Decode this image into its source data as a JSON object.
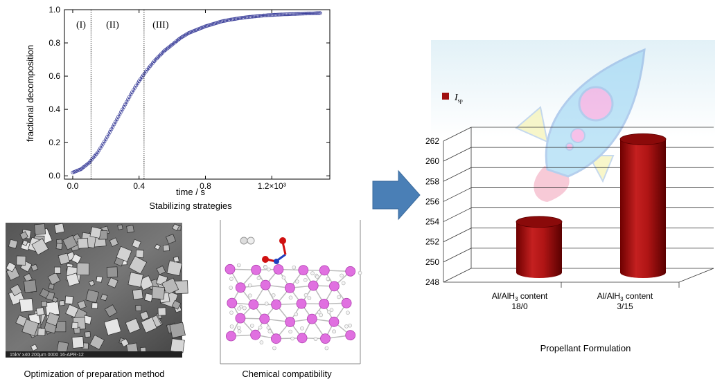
{
  "chart_data": [
    {
      "type": "line",
      "xlabel": "time / s",
      "ylabel": "fractional decomposition",
      "xlim": [
        -0.05,
        1.55
      ],
      "ylim": [
        -0.02,
        1.0
      ],
      "x_ticks": [
        "0.0",
        "0.4",
        "0.8",
        "1.2×10³"
      ],
      "x_tick_values": [
        0.0,
        0.4,
        0.8,
        1.2
      ],
      "y_ticks": [
        "0.0",
        "0.2",
        "0.4",
        "0.6",
        "0.8",
        "1.0"
      ],
      "y_tick_values": [
        0.0,
        0.2,
        0.4,
        0.6,
        0.8,
        1.0
      ],
      "region_labels": [
        "(I)",
        "(II)",
        "(III)"
      ],
      "dividers_x": [
        0.11,
        0.43
      ],
      "series": [
        {
          "x": [
            0.0,
            0.05,
            0.1,
            0.15,
            0.2,
            0.25,
            0.3,
            0.35,
            0.4,
            0.45,
            0.5,
            0.55,
            0.6,
            0.65,
            0.7,
            0.75,
            0.8,
            0.85,
            0.9,
            0.95,
            1.0,
            1.05,
            1.1,
            1.15,
            1.2,
            1.25,
            1.3,
            1.35,
            1.4,
            1.45,
            1.5
          ],
          "y": [
            0.02,
            0.04,
            0.08,
            0.14,
            0.22,
            0.31,
            0.4,
            0.49,
            0.57,
            0.64,
            0.7,
            0.75,
            0.79,
            0.83,
            0.86,
            0.88,
            0.9,
            0.915,
            0.93,
            0.94,
            0.948,
            0.955,
            0.96,
            0.965,
            0.968,
            0.971,
            0.973,
            0.975,
            0.977,
            0.978,
            0.98
          ]
        }
      ]
    },
    {
      "type": "bar",
      "categories": [
        "Al/AlH3 content 18/0",
        "Al/AlH3 content 3/15"
      ],
      "values": [
        253.3,
        261.5
      ],
      "ylim": [
        248,
        262
      ],
      "y_ticks": [
        "248",
        "250",
        "252",
        "254",
        "256",
        "258",
        "260",
        "262"
      ],
      "y_tick_values": [
        248,
        250,
        252,
        254,
        256,
        258,
        260,
        262
      ],
      "legend": "Isp",
      "legend_position": "top-left",
      "xlabel": "Propellant Formulation"
    }
  ],
  "text": {
    "stabilizing": "Stabilizing strategies",
    "optimization": "Optimization of preparation method",
    "compatibility": "Chemical compatibility",
    "propellant": "Propellant  Formulation",
    "cat1_line1": "Al/AlH",
    "cat1_sub": "3",
    "cat1_tail": " content",
    "cat1_line2": "18/0",
    "cat2_line1": "Al/AlH",
    "cat2_sub": "3",
    "cat2_tail": " content",
    "cat2_line2": "3/15",
    "legend_main": "I",
    "legend_sub": "sp",
    "sem_caption": "15kV   x40 200μm 0000 16-APR-12"
  },
  "colors": {
    "curve": "#3b3f9a",
    "bar": "#a01010",
    "arrow": "#4a7fb6",
    "atom_pink": "#e070e0",
    "atom_red": "#d01010",
    "atom_blue": "#2040c0"
  }
}
